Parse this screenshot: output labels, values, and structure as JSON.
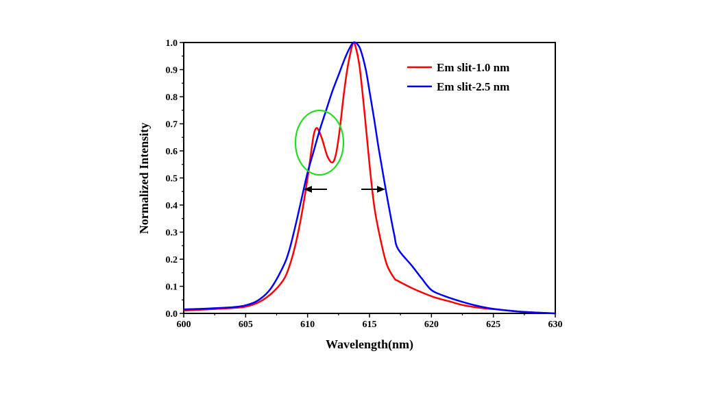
{
  "chart_data": {
    "type": "line",
    "title": "",
    "xlabel": "Wavelength(nm)",
    "ylabel": "Normalized Intensity",
    "xlim": [
      600,
      630
    ],
    "ylim": [
      0,
      1.0
    ],
    "xticks": [
      "600",
      "605",
      "610",
      "615",
      "620",
      "625",
      "630"
    ],
    "yticks": [
      "0.0",
      "0.1",
      "0.2",
      "0.3",
      "0.4",
      "0.5",
      "0.6",
      "0.7",
      "0.8",
      "0.9",
      "1.0"
    ],
    "grid": false,
    "legend_position": "top-right",
    "series": [
      {
        "name": "Em slit-1.0 nm",
        "color": "#ff0000",
        "x": [
          600,
          602,
          604,
          605,
          606,
          607,
          608,
          608.5,
          609,
          609.5,
          610,
          610.3,
          610.5,
          610.7,
          610.9,
          611.2,
          611.6,
          612.0,
          612.3,
          612.6,
          612.9,
          613.2,
          613.5,
          613.7,
          613.9,
          614.2,
          614.6,
          615.0,
          615.4,
          615.9,
          616.4,
          617.0,
          617.3,
          618.4,
          619.2,
          620.2,
          621.4,
          622.6,
          624,
          625.7,
          627,
          628.5,
          630
        ],
        "y": [
          0.01,
          0.015,
          0.02,
          0.025,
          0.04,
          0.07,
          0.12,
          0.17,
          0.25,
          0.36,
          0.5,
          0.6,
          0.66,
          0.684,
          0.675,
          0.64,
          0.58,
          0.557,
          0.59,
          0.68,
          0.8,
          0.9,
          0.97,
          1.0,
          0.98,
          0.91,
          0.74,
          0.55,
          0.39,
          0.27,
          0.18,
          0.13,
          0.12,
          0.094,
          0.078,
          0.06,
          0.045,
          0.03,
          0.02,
          0.013,
          0.007,
          0.003,
          0.0
        ]
      },
      {
        "name": "Em slit-2.5 nm",
        "color": "#0000ff",
        "x": [
          600,
          602,
          604,
          605,
          606,
          607,
          608,
          608.5,
          609,
          609.5,
          610,
          610.5,
          611,
          611.5,
          612,
          612.5,
          613,
          613.4,
          613.7,
          614.0,
          614.3,
          614.7,
          615,
          615.4,
          615.7,
          616.0,
          616.3,
          616.7,
          617.0,
          617.3,
          618.4,
          619.2,
          620.0,
          621,
          622.1,
          623.5,
          624.8,
          626.5,
          628,
          630
        ],
        "y": [
          0.015,
          0.018,
          0.023,
          0.03,
          0.048,
          0.09,
          0.17,
          0.23,
          0.32,
          0.42,
          0.52,
          0.6,
          0.68,
          0.75,
          0.82,
          0.88,
          0.94,
          0.98,
          1.0,
          0.995,
          0.97,
          0.9,
          0.82,
          0.71,
          0.62,
          0.54,
          0.46,
          0.36,
          0.29,
          0.238,
          0.177,
          0.13,
          0.086,
          0.065,
          0.048,
          0.03,
          0.018,
          0.009,
          0.004,
          0.0
        ]
      }
    ],
    "annotations": {
      "circle": "green ellipse around shoulder near 611 nm",
      "arrows": "FWHM arrows at ~0.46 intensity"
    }
  }
}
